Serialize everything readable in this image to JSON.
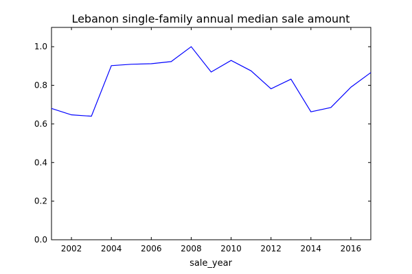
{
  "chart_data": {
    "type": "line",
    "title": "Lebanon single-family annual median sale amount",
    "xlabel": "sale_year",
    "ylabel": "",
    "xlim": [
      2001,
      2017
    ],
    "ylim": [
      0.0,
      1.1
    ],
    "x_ticks": [
      2002,
      2004,
      2006,
      2008,
      2010,
      2012,
      2014,
      2016
    ],
    "x_tick_labels": [
      "2002",
      "2004",
      "2006",
      "2008",
      "2010",
      "2012",
      "2014",
      "2016"
    ],
    "y_ticks": [
      0.0,
      0.2,
      0.4,
      0.6,
      0.8,
      1.0
    ],
    "y_tick_labels": [
      "0.0",
      "0.2",
      "0.4",
      "0.6",
      "0.8",
      "1.0"
    ],
    "grid": false,
    "legend": "none",
    "series": [
      {
        "color": "#0000ff",
        "x": [
          2001,
          2002,
          2003,
          2004,
          2005,
          2006,
          2007,
          2008,
          2009,
          2010,
          2011,
          2012,
          2013,
          2014,
          2015,
          2016,
          2017
        ],
        "y": [
          0.68,
          0.647,
          0.64,
          0.902,
          0.909,
          0.912,
          0.923,
          1.0,
          0.869,
          0.929,
          0.875,
          0.782,
          0.832,
          0.663,
          0.685,
          0.79,
          0.866
        ]
      }
    ]
  }
}
